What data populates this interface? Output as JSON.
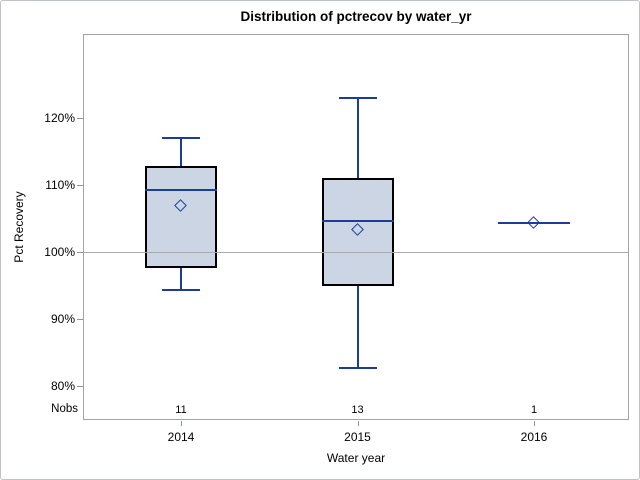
{
  "chart_data": {
    "type": "boxplot",
    "title": "Distribution of pctrecov by water_yr",
    "xlabel": "Water year",
    "ylabel": "Pct Recovery",
    "nobs_label": "Nobs",
    "ylim": [
      75,
      132.5
    ],
    "yticks": [
      80,
      90,
      100,
      110,
      120
    ],
    "ytick_suffix": "%",
    "reference_line": 100,
    "grid": false,
    "categories": [
      "2014",
      "2015",
      "2016"
    ],
    "nobs": [
      11,
      13,
      1
    ],
    "series": [
      {
        "category": "2014",
        "n": 11,
        "whisker_low": 94.3,
        "q1": 97.7,
        "median": 109.2,
        "q3": 112.8,
        "whisker_high": 117.0,
        "mean": 106.9
      },
      {
        "category": "2015",
        "n": 13,
        "whisker_low": 82.8,
        "q1": 95.0,
        "median": 104.6,
        "q3": 111.1,
        "whisker_high": 122.9,
        "mean": 103.3
      },
      {
        "category": "2016",
        "n": 1,
        "whisker_low": 104.4,
        "q1": 104.4,
        "median": 104.4,
        "q3": 104.4,
        "whisker_high": 104.4,
        "mean": 104.4
      }
    ]
  },
  "colors": {
    "box_fill": "#ccd5e3",
    "box_border": "#000000",
    "line": "#1b3d9a",
    "reference_line": "#ababab",
    "axis": "#8f9499",
    "frame": "#bdc1c8",
    "text": "#000000",
    "background": "#ffffff"
  }
}
